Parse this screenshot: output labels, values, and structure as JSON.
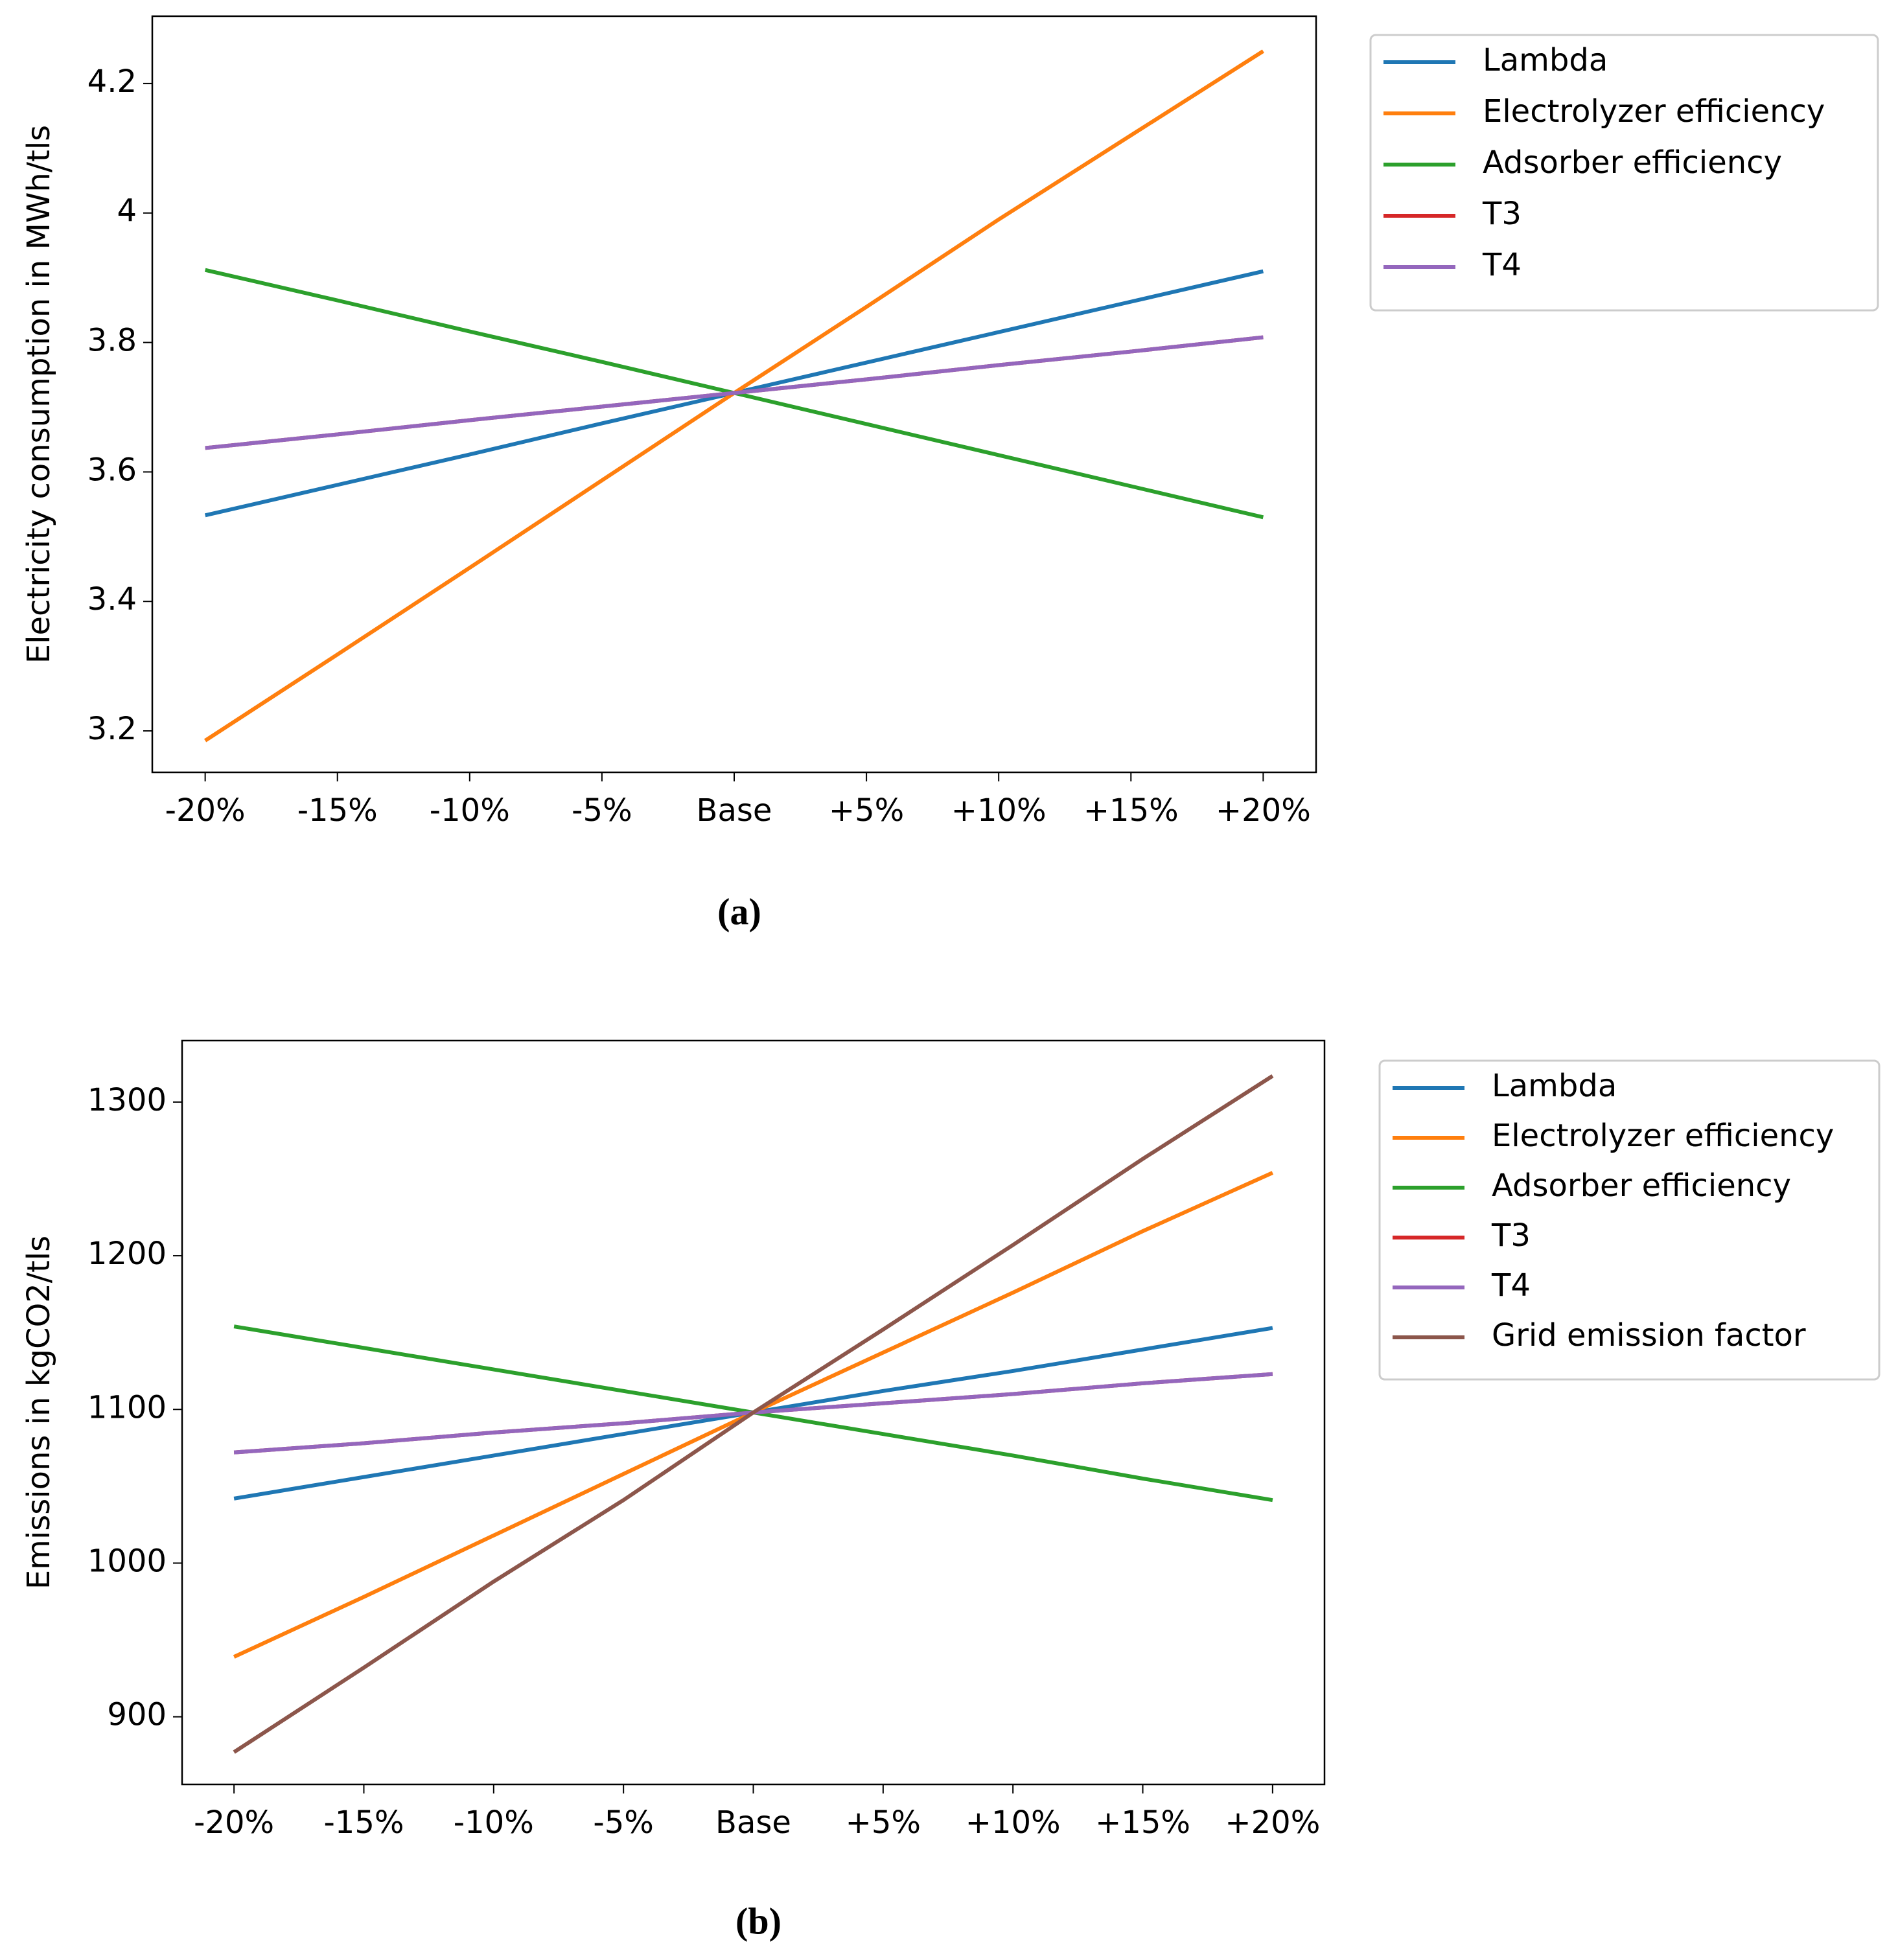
{
  "chart_data": [
    {
      "type": "line",
      "ylabel": "Electricity consumption in MWh/tls",
      "caption": "(a)",
      "categories": [
        "-20%",
        "-15%",
        "-10%",
        "-5%",
        "Base",
        "+5%",
        "+10%",
        "+15%",
        "+20%"
      ],
      "ylim": [
        3.136,
        4.304
      ],
      "yticks": [
        3.2,
        3.4,
        3.6,
        3.8,
        4.0,
        4.2
      ],
      "legend": "outside-upper-right",
      "series": [
        {
          "name": "Lambda",
          "color": "#1f77b4",
          "values": [
            3.533,
            3.58,
            3.627,
            3.675,
            3.722,
            3.769,
            3.816,
            3.863,
            3.91
          ]
        },
        {
          "name": "Electrolyzer efficiency",
          "color": "#ff7f0e",
          "values": [
            3.185,
            3.318,
            3.452,
            3.587,
            3.722,
            3.855,
            3.99,
            4.12,
            4.25
          ]
        },
        {
          "name": "Adsorber efficiency",
          "color": "#2ca02c",
          "values": [
            3.912,
            3.865,
            3.817,
            3.77,
            3.722,
            3.674,
            3.626,
            3.578,
            3.53
          ]
        },
        {
          "name": "T3",
          "color": "#d62728",
          "values": [
            3.637,
            3.658,
            3.68,
            3.701,
            3.722,
            3.743,
            3.765,
            3.786,
            3.808
          ]
        },
        {
          "name": "T4",
          "color": "#9467bd",
          "values": [
            3.637,
            3.658,
            3.68,
            3.701,
            3.722,
            3.743,
            3.765,
            3.786,
            3.808
          ]
        }
      ]
    },
    {
      "type": "line",
      "ylabel": "Emissions in kgCO2/tls",
      "caption": "(b)",
      "categories": [
        "-20%",
        "-15%",
        "-10%",
        "-5%",
        "Base",
        "+5%",
        "+10%",
        "+15%",
        "+20%"
      ],
      "ylim": [
        856,
        1340
      ],
      "yticks": [
        900,
        1000,
        1100,
        1200,
        1300
      ],
      "legend": "outside-upper-right",
      "series": [
        {
          "name": "Lambda",
          "color": "#1f77b4",
          "values": [
            1042,
            1056,
            1070,
            1084,
            1098,
            1112,
            1125,
            1139,
            1153
          ]
        },
        {
          "name": "Electrolyzer efficiency",
          "color": "#ff7f0e",
          "values": [
            939,
            978,
            1018,
            1058,
            1098,
            1137,
            1176,
            1216,
            1254
          ]
        },
        {
          "name": "Adsorber efficiency",
          "color": "#2ca02c",
          "values": [
            1154,
            1140,
            1126,
            1112,
            1098,
            1084,
            1070,
            1055,
            1041
          ]
        },
        {
          "name": "T3",
          "color": "#d62728",
          "values": [
            1072,
            1078,
            1085,
            1091,
            1098,
            1104,
            1110,
            1117,
            1123
          ]
        },
        {
          "name": "T4",
          "color": "#9467bd",
          "values": [
            1072,
            1078,
            1085,
            1091,
            1098,
            1104,
            1110,
            1117,
            1123
          ]
        },
        {
          "name": "Grid emission factor",
          "color": "#8c564b",
          "values": [
            877,
            932,
            988,
            1041,
            1098,
            1152,
            1207,
            1263,
            1317
          ]
        }
      ]
    }
  ]
}
